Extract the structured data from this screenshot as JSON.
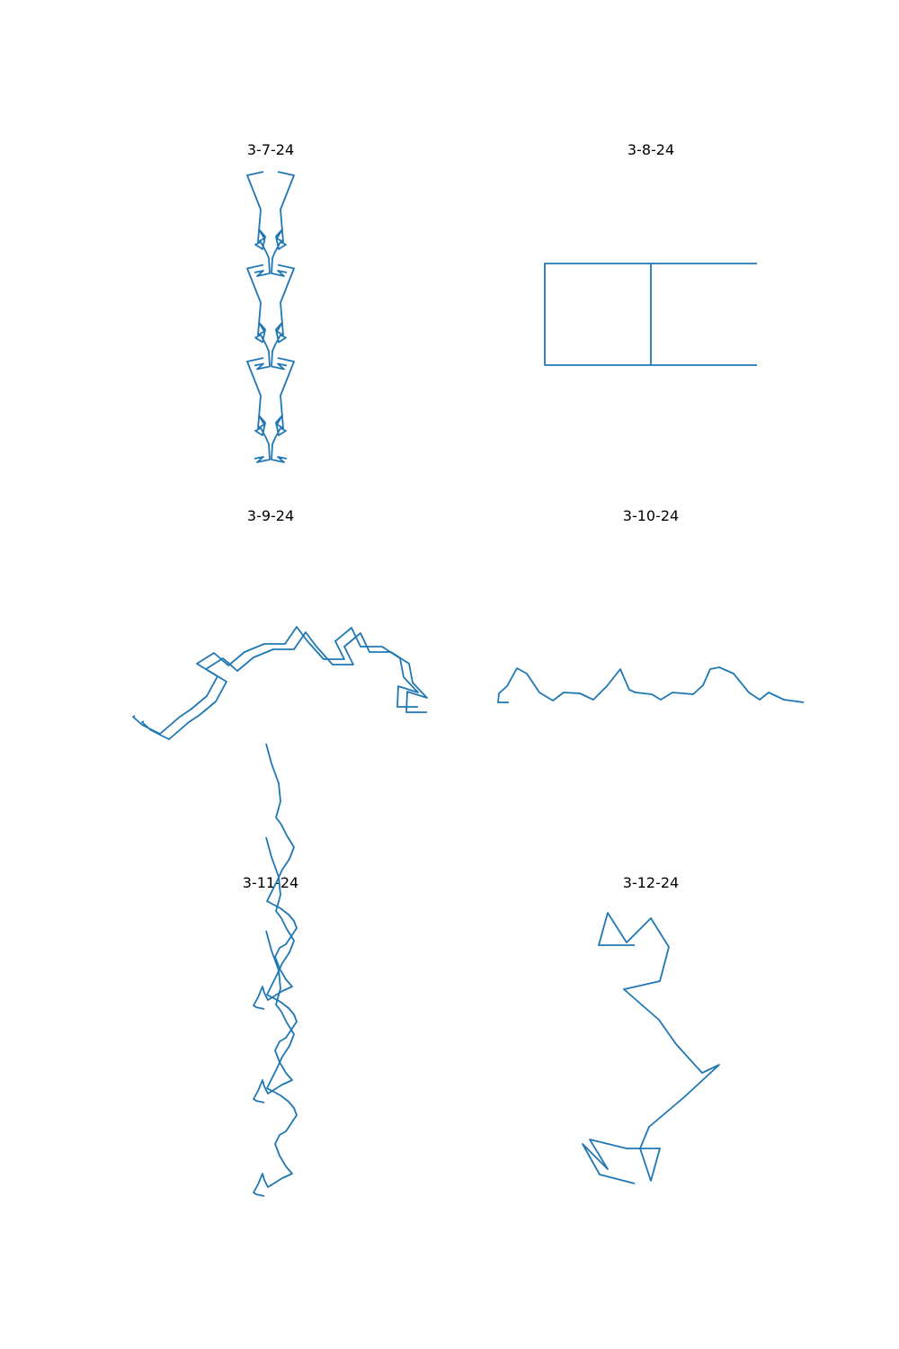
{
  "figure": {
    "line_color": "#1f77b4",
    "background": "#ffffff",
    "layout": "3 rows x 2 columns",
    "axes_visible": false
  },
  "chart_data": [
    {
      "type": "line",
      "title": "3-7-24",
      "series": [
        {
          "x": [
            319,
            309,
            316,
            302,
            303,
            306,
            312,
            318,
            310,
            307,
            314,
            308,
            315,
            312,
            327,
            309
          ],
          "y": [
            510,
            508,
            514,
            511,
            494,
            487,
            476,
            479,
            484,
            470,
            462,
            472,
            476,
            440,
            402,
            398
          ]
        }
      ]
    },
    {
      "type": "line",
      "title": "3-8-24",
      "series": [
        {
          "x": [
            842,
            724,
            724,
            606,
            606,
            724,
            724,
            842
          ],
          "y": [
            293,
            293,
            406,
            406,
            293,
            293,
            406,
            406
          ]
        }
      ]
    },
    {
      "type": "line",
      "title": "3-9-24",
      "series": [
        {
          "x": [
            465,
            442,
            443,
            465,
            449,
            445,
            425,
            401,
            391,
            373,
            383,
            360,
            342,
            330,
            317,
            294,
            272,
            254,
            238,
            219,
            242,
            230,
            212,
            200,
            178,
            158,
            148,
            150
          ],
          "y": [
            786,
            786,
            763,
            770,
            753,
            732,
            719,
            719,
            698,
            713,
            733,
            733,
            713,
            697,
            716,
            716,
            725,
            740,
            726,
            738,
            752,
            774,
            789,
            797,
            816,
            806,
            797,
            796
          ]
        }
      ]
    },
    {
      "type": "line",
      "title": "3-10-24",
      "series": [
        {
          "x": [
            894,
            872,
            855,
            845,
            833,
            816,
            800,
            790,
            782,
            771,
            760,
            748,
            735,
            725,
            707,
            700,
            690,
            675,
            660,
            645,
            627,
            615,
            600,
            586,
            575,
            564,
            555,
            554,
            566
          ],
          "y": [
            781,
            778,
            770,
            778,
            770,
            749,
            742,
            744,
            762,
            772,
            771,
            770,
            778,
            772,
            770,
            767,
            744,
            763,
            778,
            771,
            770,
            779,
            770,
            749,
            743,
            763,
            771,
            781,
            781
          ]
        }
      ]
    },
    {
      "type": "line",
      "title": "3-11-24",
      "series": [
        {
          "x": [
            294,
            285,
            282,
            287,
            292,
            294,
            298,
            314,
            325,
            318,
            311,
            306,
            311,
            318,
            330,
            327,
            321,
            312,
            297,
            303,
            308,
            314,
            322,
            327,
            319,
            313,
            307,
            312,
            310,
            302,
            296
          ],
          "y": [
            1330,
            1328,
            1326,
            1317,
            1305,
            1312,
            1320,
            1310,
            1305,
            1297,
            1285,
            1272,
            1262,
            1258,
            1240,
            1232,
            1225,
            1218,
            1210,
            1198,
            1188,
            1175,
            1163,
            1150,
            1137,
            1125,
            1117,
            1099,
            1079,
            1057,
            1035
          ]
        }
      ]
    },
    {
      "type": "line",
      "title": "3-12-24",
      "series": [
        {
          "x": [
            706,
            667,
            648,
            676,
            656,
            697,
            704,
            734,
            724,
            712,
            722,
            761,
            800,
            781,
            752,
            733,
            694,
            734,
            744,
            724,
            697,
            676,
            666,
            706
          ],
          "y": [
            1316,
            1306,
            1272,
            1300,
            1267,
            1277,
            1277,
            1277,
            1313,
            1277,
            1253,
            1220,
            1184,
            1193,
            1161,
            1134,
            1100,
            1091,
            1053,
            1021,
            1048,
            1015,
            1051,
            1051
          ]
        }
      ]
    }
  ]
}
